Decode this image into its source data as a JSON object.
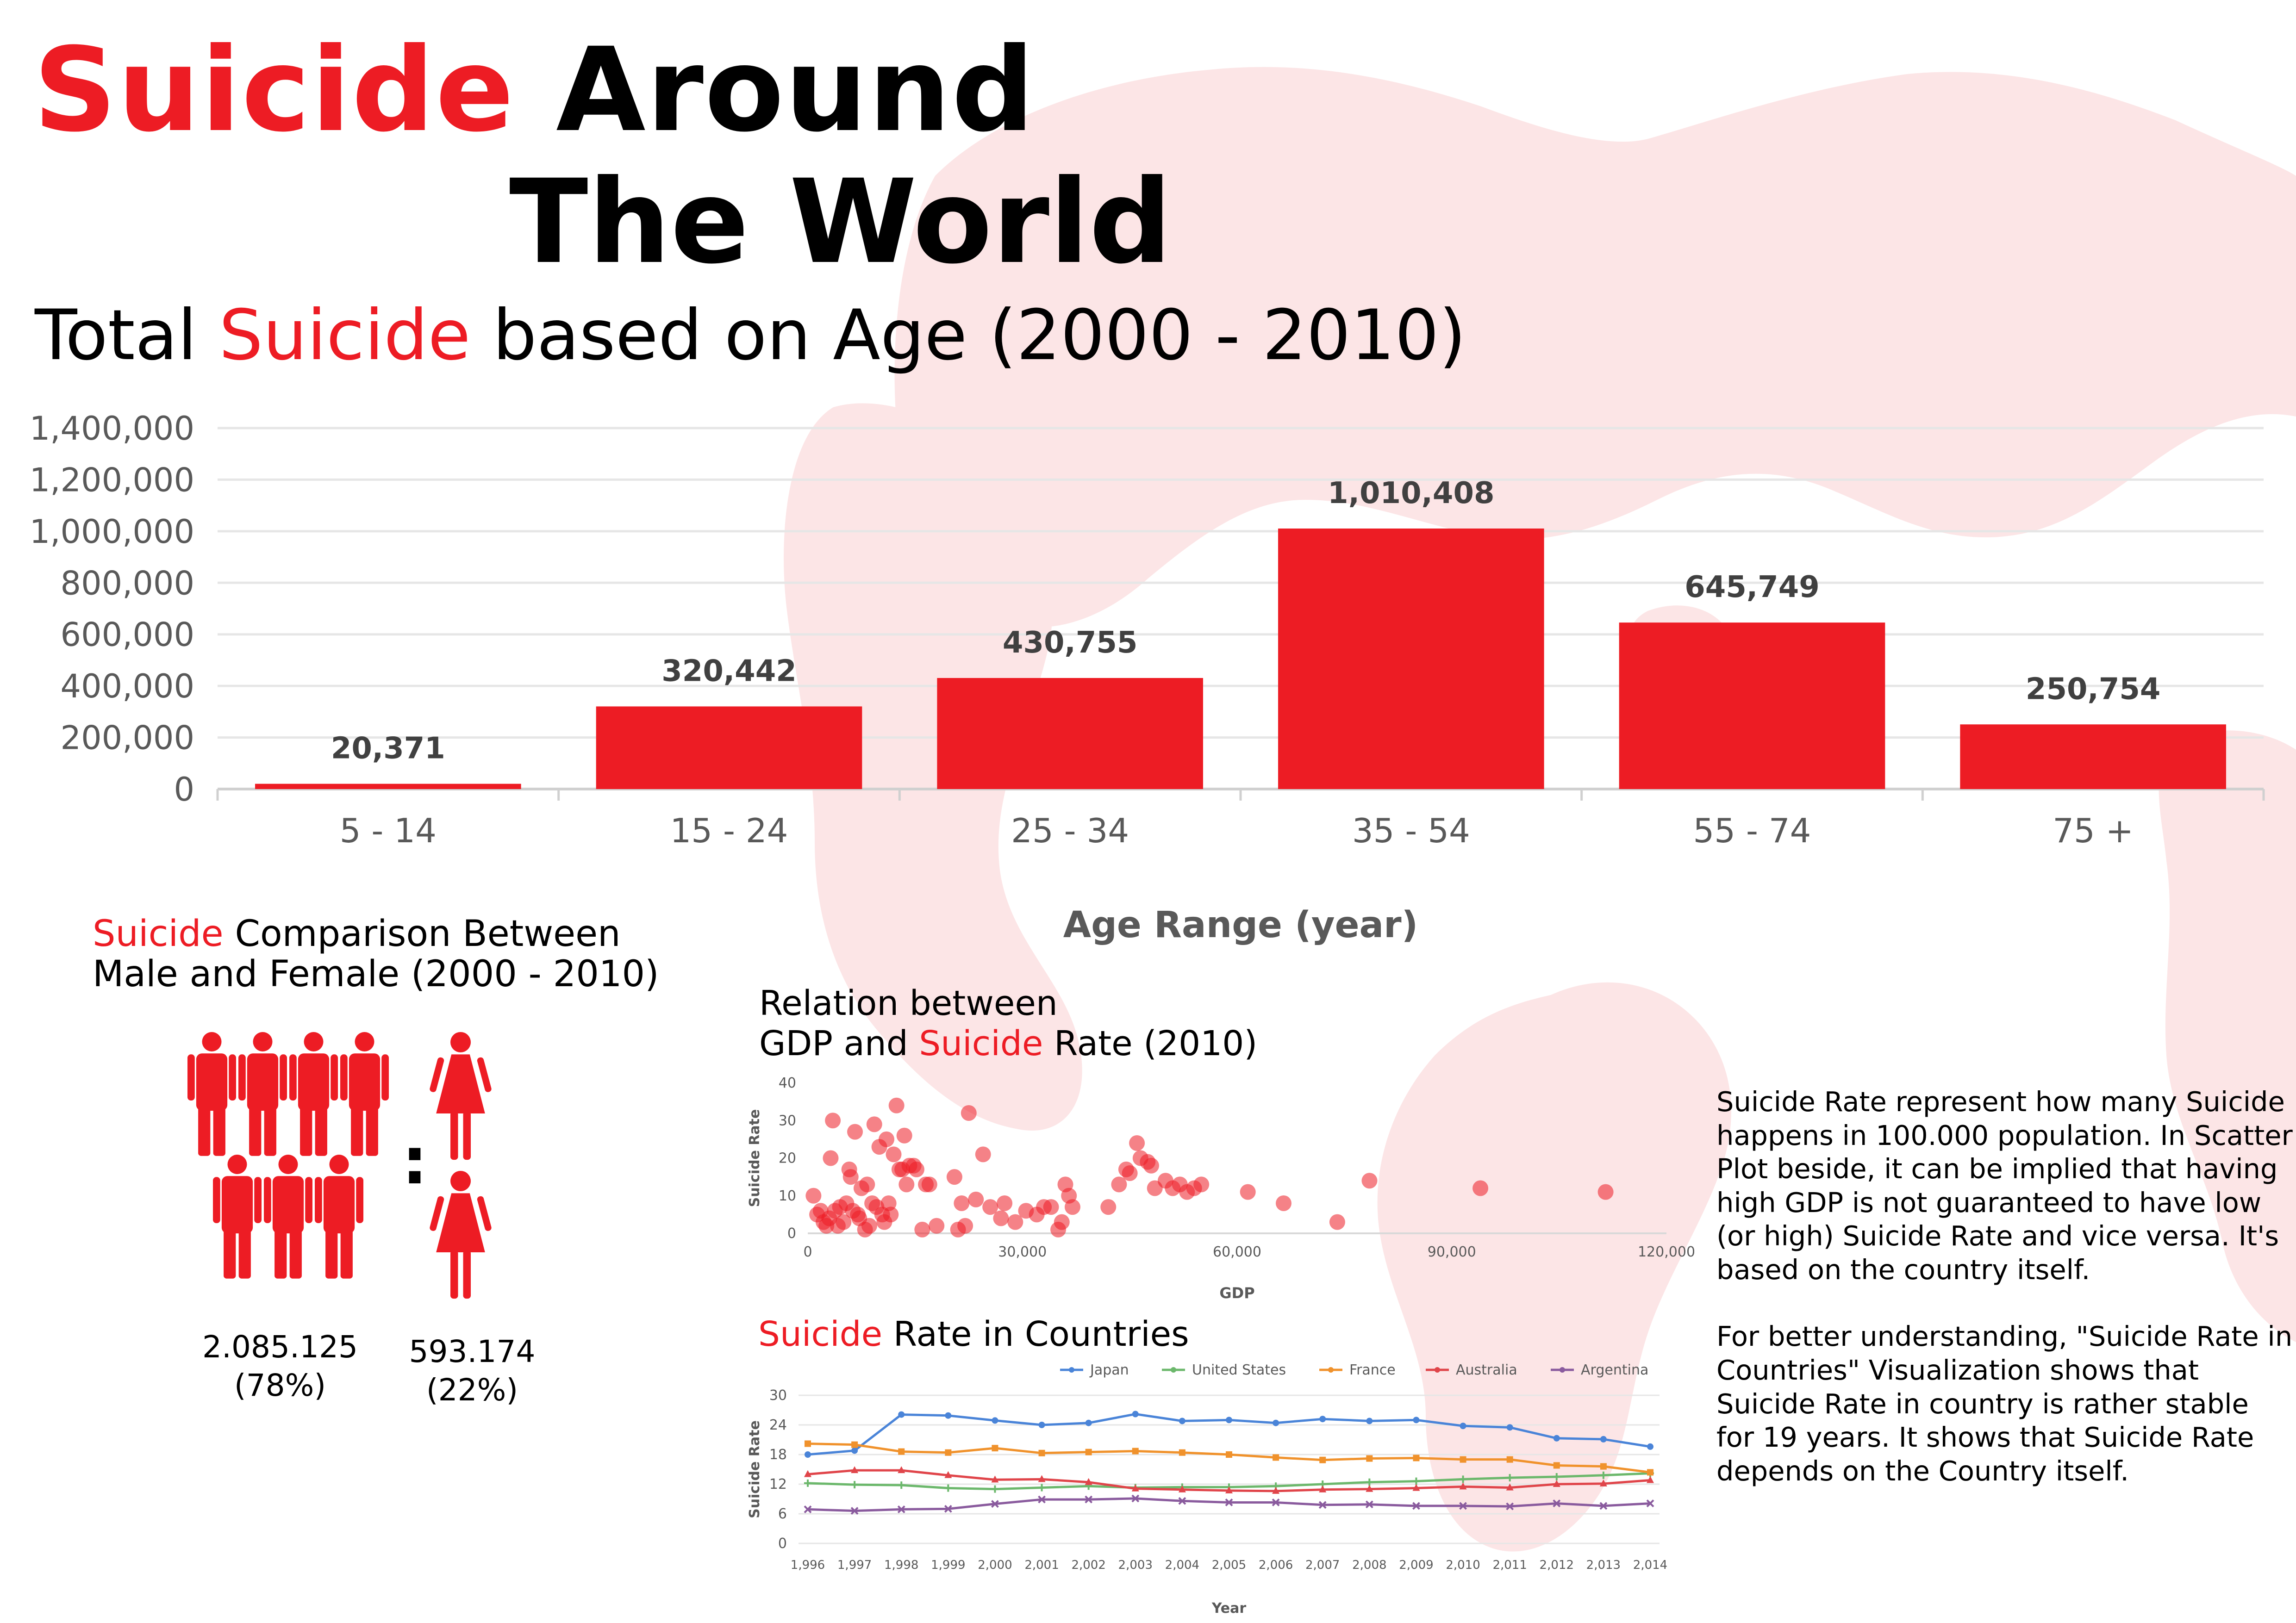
{
  "colors": {
    "accent": "#ed1c24",
    "map_tint": "#fbe3e4",
    "gridline": "#e6e6e6",
    "japan": "#4a84d8",
    "united_states": "#6cb86c",
    "france": "#f0922c",
    "australia": "#e0454a",
    "argentina": "#8a5b9e"
  },
  "header": {
    "title_word_red": "Suicide",
    "title_word_2": "Around",
    "title_line_2": "The World"
  },
  "bar_section": {
    "title_red": "Suicide",
    "title_pre": "Total",
    "title_post": "based on Age (2000 - 2010)"
  },
  "gender_section": {
    "title_red": "Suicide",
    "title_line1_rest": "Comparison Between",
    "title_line2": "Male and Female (2000 - 2010)",
    "male_icons": 7,
    "female_icons": 2,
    "male_value": "2.085.125",
    "male_pct": "(78%)",
    "female_value": "593.174",
    "female_pct": "(22%)",
    "separator": ":"
  },
  "scatter_section": {
    "title_line1": "Relation between",
    "title_line2_pre": "GDP and",
    "title_red": "Suicide",
    "title_line2_post": "Rate (2010)"
  },
  "line_section": {
    "title_red": "Suicide",
    "title_rest": "Rate in Countries"
  },
  "notes": {
    "paragraph_1": "Suicide Rate represent how many Suicide happens in 100.000 population. In Scatter Plot beside, it can be implied that having high GDP is not guaranteed to have low (or high) Suicide Rate  and vice versa. It's based on the country itself.",
    "paragraph_2": "For better understanding, \"Suicide Rate in Countries\" Visualization shows that Suicide Rate in country is rather stable for 19 years. It shows that Suicide Rate depends on the Country itself."
  },
  "chart_data": [
    {
      "type": "bar",
      "title": "Total Suicide based on Age (2000 - 2010)",
      "categories": [
        "5 - 14",
        "15 - 24",
        "25 - 34",
        "35 - 54",
        "55 - 74",
        "75 +"
      ],
      "values": [
        20371,
        320442,
        430755,
        1010408,
        645749,
        250754
      ],
      "data_labels": [
        "20,371",
        "320,442",
        "430,755",
        "1,010,408",
        "645,749",
        "250,754"
      ],
      "xlabel": "Age Range (year)",
      "ylabel": "",
      "ylim": [
        0,
        1400000
      ],
      "yticks": [
        0,
        200000,
        400000,
        600000,
        800000,
        1000000,
        1200000,
        1400000
      ],
      "ytick_labels": [
        "0",
        "200,000",
        "400,000",
        "600,000",
        "800,000",
        "1,000,000",
        "1,200,000",
        "1,400,000"
      ],
      "grid": true
    },
    {
      "type": "scatter",
      "title": "Relation between GDP and Suicide Rate (2010)",
      "xlabel": "GDP",
      "ylabel": "Suicide Rate",
      "xlim": [
        0,
        120000
      ],
      "ylim": [
        0,
        40
      ],
      "xticks": [
        0,
        30000,
        60000,
        90000,
        120000
      ],
      "xtick_labels": [
        "0",
        "30,000",
        "60,000",
        "90,000",
        "120,000"
      ],
      "yticks": [
        0,
        10,
        20,
        30,
        40
      ],
      "ytick_labels": [
        "0",
        "10",
        "20",
        "30",
        "40"
      ],
      "points": [
        [
          800,
          10
        ],
        [
          1300,
          5
        ],
        [
          1800,
          6
        ],
        [
          2200,
          3
        ],
        [
          2600,
          2
        ],
        [
          3000,
          4
        ],
        [
          3200,
          20
        ],
        [
          3500,
          30
        ],
        [
          3800,
          6
        ],
        [
          4200,
          2
        ],
        [
          4500,
          7
        ],
        [
          5000,
          3
        ],
        [
          5400,
          8
        ],
        [
          5800,
          17
        ],
        [
          6000,
          15
        ],
        [
          6300,
          6
        ],
        [
          6600,
          27
        ],
        [
          7000,
          5
        ],
        [
          7200,
          4
        ],
        [
          7500,
          12
        ],
        [
          8000,
          1
        ],
        [
          8300,
          13
        ],
        [
          8600,
          2
        ],
        [
          9000,
          8
        ],
        [
          9300,
          29
        ],
        [
          9600,
          7
        ],
        [
          10000,
          23
        ],
        [
          10400,
          5
        ],
        [
          10700,
          3
        ],
        [
          11000,
          25
        ],
        [
          11300,
          8
        ],
        [
          11600,
          5
        ],
        [
          12000,
          21
        ],
        [
          12400,
          34
        ],
        [
          12800,
          17
        ],
        [
          13200,
          17
        ],
        [
          13500,
          26
        ],
        [
          13800,
          13
        ],
        [
          14200,
          18
        ],
        [
          14800,
          18
        ],
        [
          15200,
          17
        ],
        [
          16000,
          1
        ],
        [
          16500,
          13
        ],
        [
          17000,
          13
        ],
        [
          18000,
          2
        ],
        [
          20500,
          15
        ],
        [
          21000,
          1
        ],
        [
          21500,
          8
        ],
        [
          22000,
          2
        ],
        [
          22500,
          32
        ],
        [
          23500,
          9
        ],
        [
          24500,
          21
        ],
        [
          25500,
          7
        ],
        [
          27000,
          4
        ],
        [
          27500,
          8
        ],
        [
          29000,
          3
        ],
        [
          30500,
          6
        ],
        [
          32000,
          5
        ],
        [
          33000,
          7
        ],
        [
          34000,
          7
        ],
        [
          35000,
          1
        ],
        [
          35500,
          3
        ],
        [
          36000,
          13
        ],
        [
          36500,
          10
        ],
        [
          37000,
          7
        ],
        [
          42000,
          7
        ],
        [
          43500,
          13
        ],
        [
          44500,
          17
        ],
        [
          45000,
          16
        ],
        [
          46000,
          24
        ],
        [
          46500,
          20
        ],
        [
          47500,
          19
        ],
        [
          48000,
          18
        ],
        [
          48500,
          12
        ],
        [
          50000,
          14
        ],
        [
          51000,
          12
        ],
        [
          52000,
          13
        ],
        [
          53000,
          11
        ],
        [
          54000,
          12
        ],
        [
          55000,
          13
        ],
        [
          61500,
          11
        ],
        [
          66500,
          8
        ],
        [
          74000,
          3
        ],
        [
          78500,
          14
        ],
        [
          94000,
          12
        ],
        [
          111500,
          11
        ]
      ],
      "grid": false
    },
    {
      "type": "line",
      "title": "Suicide Rate in Countries",
      "xlabel": "Year",
      "ylabel": "Suicide Rate",
      "x": [
        1996,
        1997,
        1998,
        1999,
        2000,
        2001,
        2002,
        2003,
        2004,
        2005,
        2006,
        2007,
        2008,
        2009,
        2010,
        2011,
        2012,
        2013,
        2014
      ],
      "xtick_labels": [
        "1,996",
        "1,997",
        "1,998",
        "1,999",
        "2,000",
        "2,001",
        "2,002",
        "2,003",
        "2,004",
        "2,005",
        "2,006",
        "2,007",
        "2,008",
        "2,009",
        "2,010",
        "2,011",
        "2,012",
        "2,013",
        "2,014"
      ],
      "ylim": [
        0,
        30
      ],
      "yticks": [
        0,
        6,
        12,
        18,
        24,
        30
      ],
      "ytick_labels": [
        "0",
        "6",
        "12",
        "18",
        "24",
        "30"
      ],
      "legend_position": "top",
      "grid": true,
      "series": [
        {
          "name": "Japan",
          "values": [
            18.0,
            18.8,
            26.1,
            25.9,
            24.9,
            24.0,
            24.4,
            26.2,
            24.8,
            25.0,
            24.4,
            25.2,
            24.8,
            25.0,
            23.8,
            23.5,
            21.3,
            21.1,
            19.6
          ]
        },
        {
          "name": "United States",
          "values": [
            12.2,
            11.9,
            11.8,
            11.2,
            11.0,
            11.3,
            11.6,
            11.3,
            11.4,
            11.4,
            11.6,
            12.0,
            12.4,
            12.6,
            13.0,
            13.3,
            13.5,
            13.8,
            14.2
          ]
        },
        {
          "name": "France",
          "values": [
            20.2,
            20.0,
            18.6,
            18.4,
            19.3,
            18.3,
            18.5,
            18.7,
            18.4,
            18.0,
            17.4,
            16.9,
            17.2,
            17.3,
            17.0,
            17.0,
            15.8,
            15.6,
            14.4
          ]
        },
        {
          "name": "Australia",
          "values": [
            14.0,
            14.8,
            14.8,
            13.8,
            12.9,
            13.0,
            12.4,
            11.1,
            10.9,
            10.7,
            10.6,
            10.9,
            11.0,
            11.2,
            11.5,
            11.3,
            12.0,
            12.1,
            12.8
          ]
        },
        {
          "name": "Argentina",
          "values": [
            6.9,
            6.6,
            6.9,
            7.0,
            8.0,
            8.9,
            8.9,
            9.1,
            8.6,
            8.3,
            8.3,
            7.8,
            7.9,
            7.6,
            7.6,
            7.5,
            8.1,
            7.6,
            8.1
          ]
        }
      ]
    }
  ]
}
